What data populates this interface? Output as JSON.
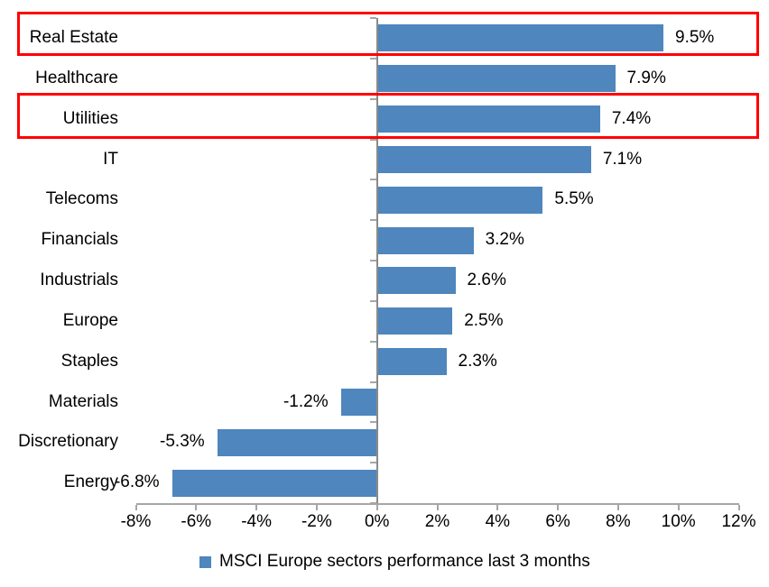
{
  "chart_data": {
    "type": "bar",
    "orientation": "horizontal",
    "title": "",
    "xlabel": "",
    "ylabel": "",
    "categories": [
      "Real Estate",
      "Healthcare",
      "Utilities",
      "IT",
      "Telecoms",
      "Financials",
      "Industrials",
      "Europe",
      "Staples",
      "Materials",
      "Discretionary",
      "Energy"
    ],
    "values": [
      9.5,
      7.9,
      7.4,
      7.1,
      5.5,
      3.2,
      2.6,
      2.5,
      2.3,
      -1.2,
      -5.3,
      -6.8
    ],
    "labels": [
      "9.5%",
      "7.9%",
      "7.4%",
      "7.1%",
      "5.5%",
      "3.2%",
      "2.6%",
      "2.5%",
      "2.3%",
      "-1.2%",
      "-5.3%",
      "-6.8%"
    ],
    "xlim": [
      -8,
      12
    ],
    "x_tick_values": [
      -8,
      -6,
      -4,
      -2,
      0,
      2,
      4,
      6,
      8,
      10,
      12
    ],
    "x_ticks": [
      "-8%",
      "-6%",
      "-4%",
      "-2%",
      "0%",
      "2%",
      "4%",
      "6%",
      "8%",
      "10%",
      "12%"
    ],
    "grid": false,
    "legend": "MSCI Europe sectors performance last 3 months",
    "legend_position": "bottom",
    "bar_color": "#4e86bd",
    "axis_color": "#8a8a8a",
    "tick_color": "#a6a6a6",
    "highlight_color": "#ff0000",
    "highlighted_categories": [
      "Real Estate",
      "Utilities"
    ]
  }
}
